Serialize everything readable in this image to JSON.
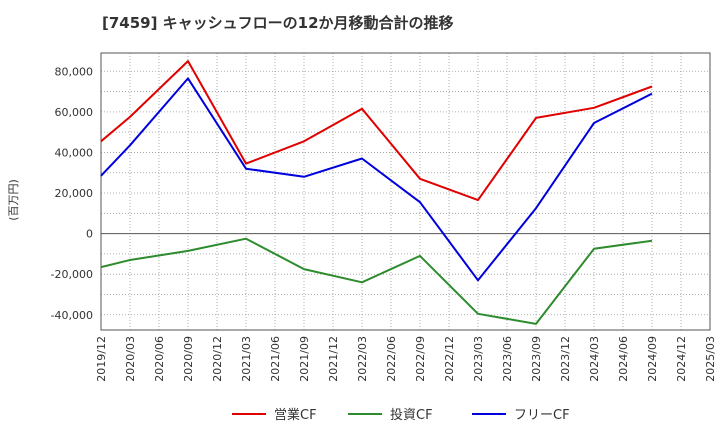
{
  "chart_data": {
    "type": "line",
    "title": "[7459]  キャッシュフローの12か月移動合計の推移",
    "ylabel": "(百万円)",
    "xlabel": "",
    "ylim": [
      -47500,
      89000
    ],
    "yticks": [
      -40000,
      -20000,
      0,
      20000,
      40000,
      60000,
      80000
    ],
    "ytick_labels": [
      "-40,000",
      "-20,000",
      "0",
      "20,000",
      "40,000",
      "60,000",
      "80,000"
    ],
    "categories": [
      "2019/12",
      "2020/03",
      "2020/06",
      "2020/09",
      "2020/12",
      "2021/03",
      "2021/06",
      "2021/09",
      "2021/12",
      "2022/03",
      "2022/06",
      "2022/09",
      "2022/12",
      "2023/03",
      "2023/06",
      "2023/09",
      "2023/12",
      "2024/03",
      "2024/06",
      "2024/09",
      "2024/12",
      "2025/03"
    ],
    "grid": true,
    "legend_position": "bottom-center",
    "series": [
      {
        "name": "営業CF",
        "color": "#e00000",
        "points": [
          [
            0,
            45500
          ],
          [
            1,
            57500
          ],
          [
            3,
            85000
          ],
          [
            5,
            34500
          ],
          [
            7,
            45500
          ],
          [
            9,
            61500
          ],
          [
            11,
            27000
          ],
          [
            13,
            16500
          ],
          [
            15,
            57000
          ],
          [
            17,
            62000
          ],
          [
            19,
            72500
          ]
        ]
      },
      {
        "name": "投資CF",
        "color": "#2e8b2e",
        "points": [
          [
            0,
            -16500
          ],
          [
            1,
            -13000
          ],
          [
            3,
            -8500
          ],
          [
            5,
            -2500
          ],
          [
            7,
            -17500
          ],
          [
            9,
            -24000
          ],
          [
            11,
            -11000
          ],
          [
            13,
            -39500
          ],
          [
            15,
            -44500
          ],
          [
            17,
            -7500
          ],
          [
            19,
            -3500
          ]
        ]
      },
      {
        "name": "フリーCF",
        "color": "#0000dd",
        "points": [
          [
            0,
            28500
          ],
          [
            1,
            43500
          ],
          [
            3,
            76500
          ],
          [
            5,
            32000
          ],
          [
            7,
            28000
          ],
          [
            9,
            37000
          ],
          [
            11,
            15500
          ],
          [
            13,
            -23000
          ],
          [
            15,
            12500
          ],
          [
            17,
            54500
          ],
          [
            19,
            69000
          ]
        ]
      }
    ]
  }
}
